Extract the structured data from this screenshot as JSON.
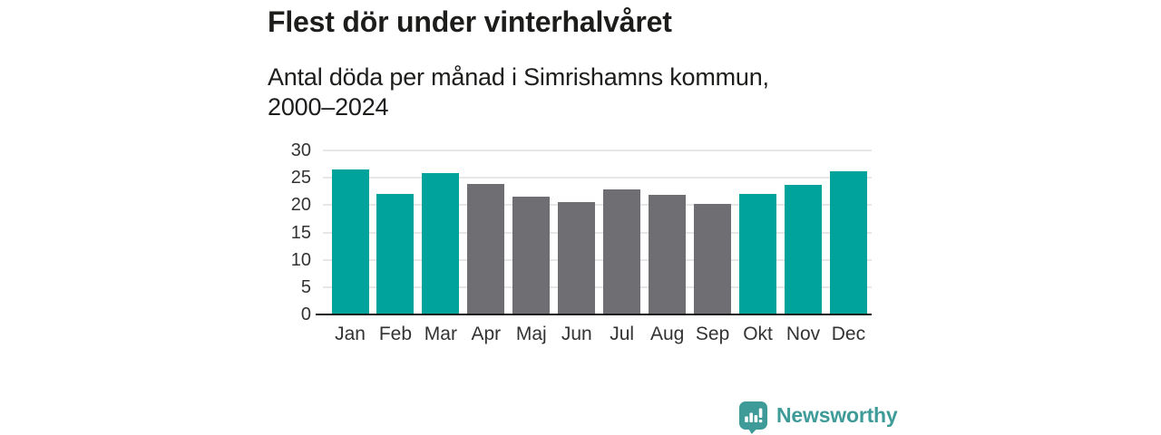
{
  "header": {
    "title": "Flest dör under vinterhalvåret",
    "subtitle": "Antal döda per månad i Simrishamns kommun,\n2000–2024"
  },
  "chart_data": {
    "type": "bar",
    "title": "Flest dör under vinterhalvåret",
    "subtitle": "Antal döda per månad i Simrishamns kommun, 2000–2024",
    "categories": [
      "Jan",
      "Feb",
      "Mar",
      "Apr",
      "Maj",
      "Jun",
      "Jul",
      "Aug",
      "Sep",
      "Okt",
      "Nov",
      "Dec"
    ],
    "values": [
      26.6,
      22.0,
      25.9,
      23.9,
      21.6,
      20.6,
      22.8,
      21.9,
      20.3,
      22.1,
      23.7,
      26.2
    ],
    "highlighted_categories": [
      "Jan",
      "Feb",
      "Mar",
      "Okt",
      "Nov",
      "Dec"
    ],
    "xlabel": "",
    "ylabel": "",
    "ylim": [
      0,
      30
    ],
    "ytick_step": 5,
    "yticks": [
      0,
      5,
      10,
      15,
      20,
      25,
      30
    ],
    "grid": true,
    "legend": false,
    "colors": {
      "highlight_bar": "#00a39b",
      "default_bar": "#6e6e73",
      "axis": "#1a1a1a",
      "gridline": "#e7e7e7",
      "tick_label": "#333333",
      "text": "#1d1d1b"
    }
  },
  "footer": {
    "brand_name": "Newsworthy",
    "brand_color": "#3e9b98"
  }
}
